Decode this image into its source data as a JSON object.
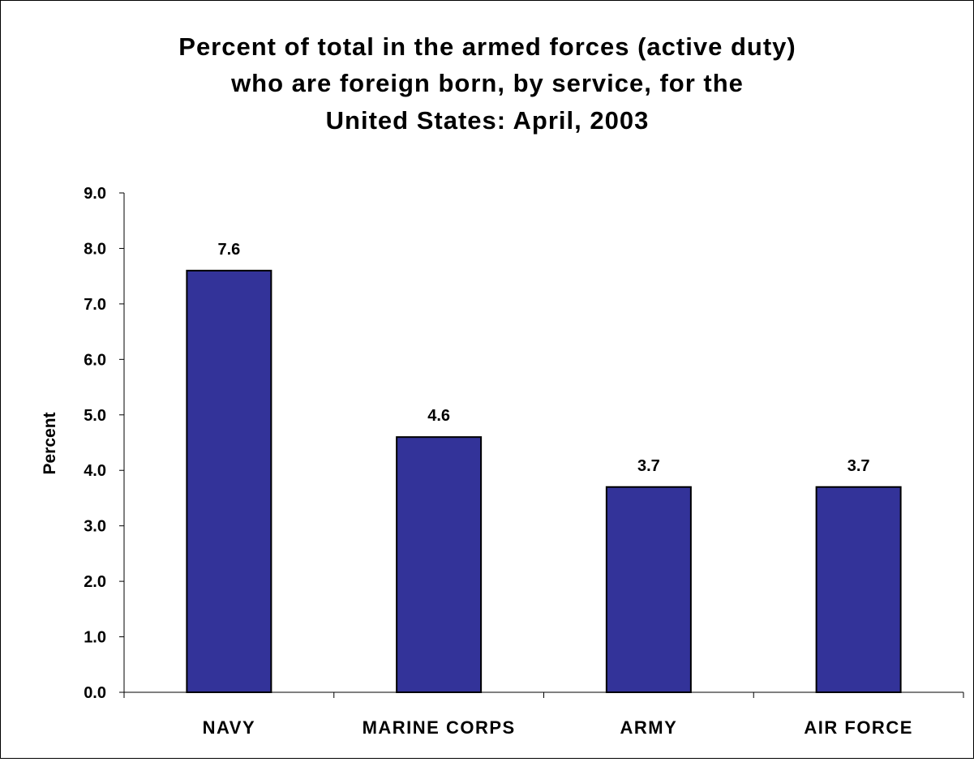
{
  "chart_data": {
    "type": "bar",
    "title_lines": [
      "Percent of total in the armed forces (active duty)",
      "who are foreign born, by service, for the",
      "United States: April, 2003"
    ],
    "xlabel": "",
    "ylabel": "Percent",
    "ylim": [
      0,
      9
    ],
    "ytick_step": 1,
    "ytick_labels": [
      "0.0",
      "1.0",
      "2.0",
      "3.0",
      "4.0",
      "5.0",
      "6.0",
      "7.0",
      "8.0",
      "9.0"
    ],
    "categories": [
      "NAVY",
      "MARINE CORPS",
      "ARMY",
      "AIR FORCE"
    ],
    "values": [
      7.6,
      4.6,
      3.7,
      3.7
    ],
    "data_labels": [
      "7.6",
      "4.6",
      "3.7",
      "3.7"
    ],
    "bar_color": "#333399",
    "bar_border_color": "#000000",
    "grid": false,
    "legend": "none"
  }
}
